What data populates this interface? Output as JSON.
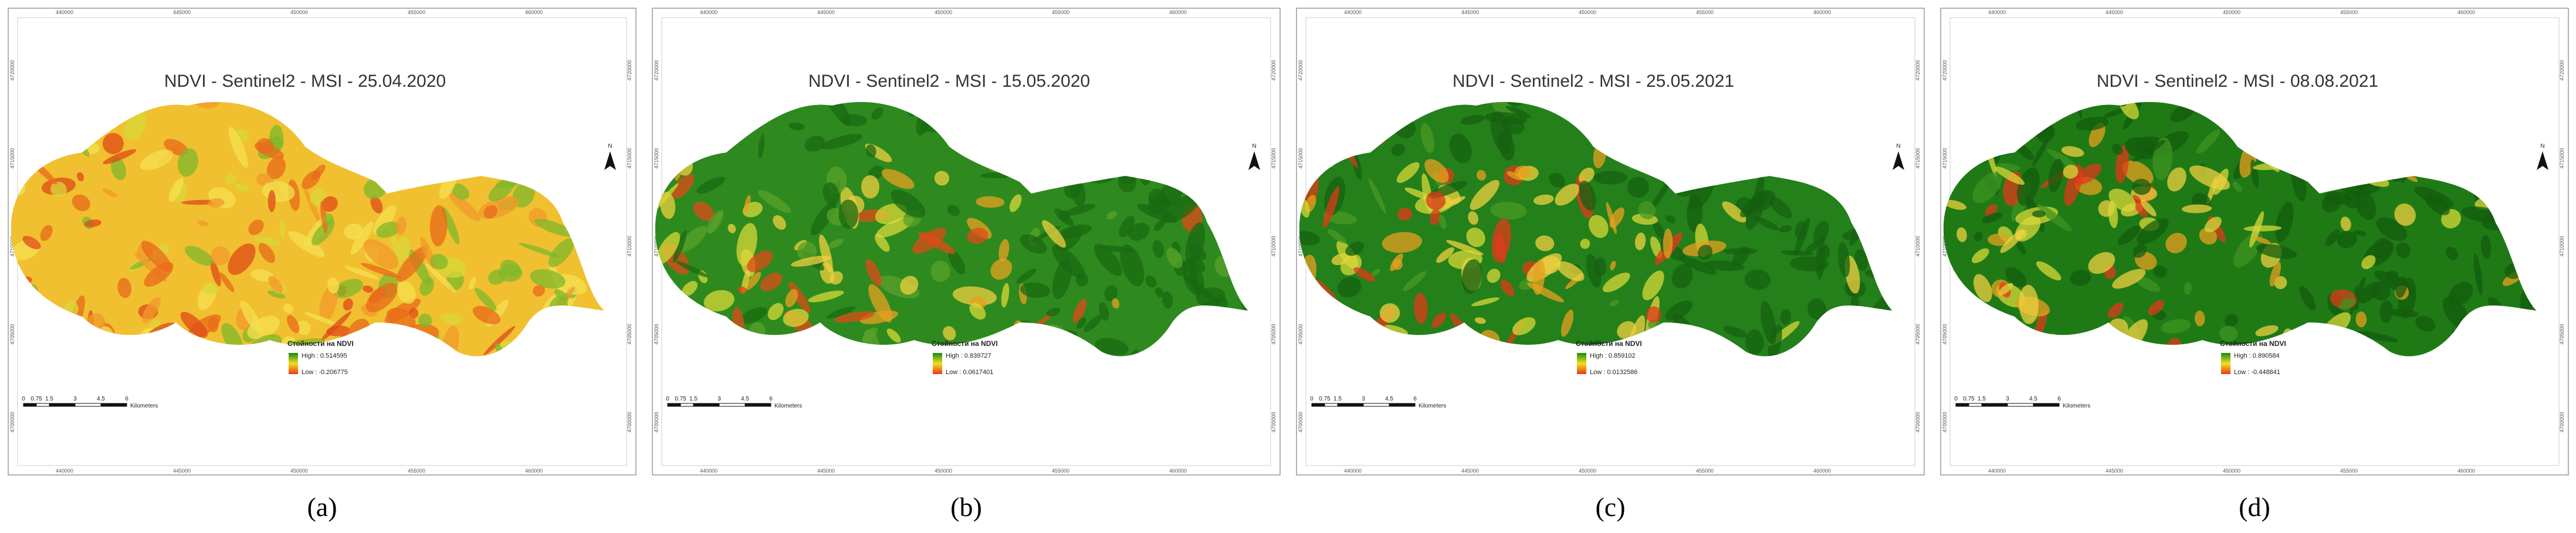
{
  "panels": [
    {
      "title": "NDVI - Sentinel2 - MSI - 25.04.2020",
      "legend_title": "Стойности на NDVI",
      "high": "High : 0.514595",
      "low": "Low : -0.206775",
      "label": "(a)"
    },
    {
      "title": "NDVI - Sentinel2 - MSI - 15.05.2020",
      "legend_title": "Стойности на NDVI",
      "high": "High : 0.839727",
      "low": "Low : 0.0617401",
      "label": "(b)"
    },
    {
      "title": "NDVI - Sentinel2 - MSI - 25.05.2021",
      "legend_title": "Стойности на NDVI",
      "high": "High : 0.859102",
      "low": "Low : 0.0132586",
      "label": "(c)"
    },
    {
      "title": "NDVI - Sentinel2 - MSI - 08.08.2021",
      "legend_title": "Стойности на NDVI",
      "high": "High : 0.890584",
      "low": "Low : -0.448841",
      "label": "(d)"
    }
  ],
  "scale_labels": [
    "0",
    "0.75",
    "1.5",
    "3",
    "4.5",
    "6"
  ],
  "scale_unit": "Kilometers",
  "north": "N",
  "x_coords": [
    "440000",
    "445000",
    "450000",
    "455000",
    "460000"
  ],
  "y_coords": [
    "4720000",
    "4715000",
    "4710000",
    "4705000",
    "4700000"
  ]
}
